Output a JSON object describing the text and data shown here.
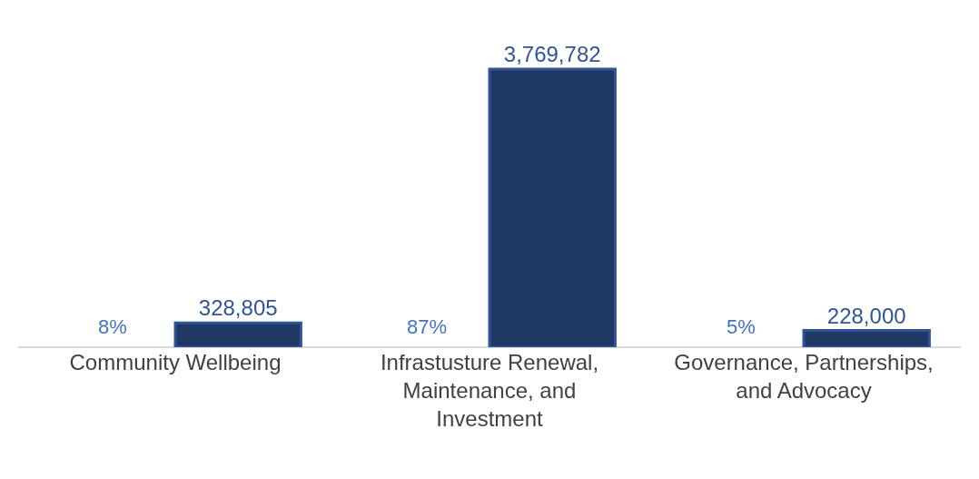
{
  "chart_data": {
    "type": "bar",
    "categories": [
      "Community Wellbeing",
      "Infrastusture Renewal, Maintenance, and Investment",
      "Governance, Partnerships, and Advocacy"
    ],
    "series": [
      {
        "color": "#203864",
        "values": [
          328805,
          3769782,
          228000
        ],
        "value_labels": [
          "328,805",
          "3,769,782",
          "228,000"
        ]
      }
    ],
    "annotations": [
      {
        "text": "8%",
        "x": "Community Wellbeing",
        "y": 0
      },
      {
        "text": "87%",
        "x": "Infrastusture Renewal, Maintenance, and Investment",
        "y": 0
      },
      {
        "text": "5%",
        "x": "Governance, Partnerships, and Advocacy",
        "y": 0
      }
    ],
    "legend": false
  }
}
